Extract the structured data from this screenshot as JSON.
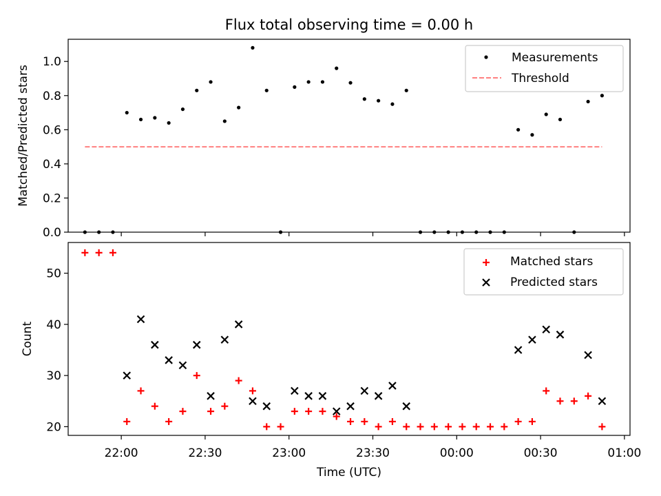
{
  "title": "Flux total observing time = 0.00 h",
  "chart_data": [
    {
      "type": "scatter",
      "panel": "top",
      "ylabel": "Matched/Predicted stars",
      "ylim": [
        0,
        1.13
      ],
      "yticks": [
        0.0,
        0.2,
        0.4,
        0.6,
        0.8,
        1.0
      ],
      "ytick_labels": [
        "0.0",
        "0.2",
        "0.4",
        "0.6",
        "0.8",
        "1.0"
      ],
      "legend_position": "top-right",
      "series": [
        {
          "name": "Measurements",
          "marker": "dot",
          "color": "#000000",
          "x": [
            "21:47",
            "21:52",
            "21:57",
            "22:02",
            "22:07",
            "22:12",
            "22:17",
            "22:22",
            "22:27",
            "22:32",
            "22:37",
            "22:42",
            "22:47",
            "22:52",
            "22:57",
            "23:02",
            "23:07",
            "23:12",
            "23:17",
            "23:22",
            "23:27",
            "23:32",
            "23:37",
            "23:42",
            "23:47",
            "23:52",
            "23:57",
            "00:02",
            "00:07",
            "00:12",
            "00:17",
            "00:22",
            "00:27",
            "00:32",
            "00:37",
            "00:42",
            "00:47",
            "00:52"
          ],
          "y": [
            0,
            0,
            0,
            0.7,
            0.66,
            0.67,
            0.64,
            0.72,
            0.83,
            0.88,
            0.65,
            0.73,
            1.08,
            0.83,
            0,
            0.85,
            0.88,
            0.88,
            0.96,
            0.875,
            0.78,
            0.77,
            0.75,
            0.83,
            0,
            0,
            0,
            0,
            0,
            0,
            0,
            0.6,
            0.57,
            0.69,
            0.66,
            0,
            0.765,
            0.8
          ]
        },
        {
          "name": "Threshold",
          "style": "dashed",
          "color": "#ff7f7f",
          "x": [
            "21:47",
            "00:52"
          ],
          "y": [
            0.5,
            0.5
          ]
        }
      ]
    },
    {
      "type": "scatter",
      "panel": "bottom",
      "xlabel": "Time (UTC)",
      "ylabel": "Count",
      "ylim": [
        18.3,
        56
      ],
      "yticks": [
        20,
        30,
        40,
        50
      ],
      "ytick_labels": [
        "20",
        "30",
        "40",
        "50"
      ],
      "xlim": [
        "21:41",
        "01:02"
      ],
      "xticks": [
        "22:00",
        "22:30",
        "23:00",
        "23:30",
        "00:00",
        "00:30",
        "01:00"
      ],
      "legend_position": "top-right",
      "series": [
        {
          "name": "Matched stars",
          "marker": "plus",
          "color": "#ff0000",
          "x": [
            "21:47",
            "21:52",
            "21:57",
            "22:02",
            "22:07",
            "22:12",
            "22:17",
            "22:22",
            "22:27",
            "22:32",
            "22:37",
            "22:42",
            "22:47",
            "22:52",
            "22:57",
            "23:02",
            "23:07",
            "23:12",
            "23:17",
            "23:22",
            "23:27",
            "23:32",
            "23:37",
            "23:42",
            "23:47",
            "23:52",
            "23:57",
            "00:02",
            "00:07",
            "00:12",
            "00:17",
            "00:22",
            "00:27",
            "00:32",
            "00:37",
            "00:42",
            "00:47",
            "00:52"
          ],
          "y": [
            54,
            54,
            54,
            21,
            27,
            24,
            21,
            23,
            30,
            23,
            24,
            29,
            27,
            20,
            20,
            23,
            23,
            23,
            22,
            21,
            21,
            20,
            21,
            20,
            20,
            20,
            20,
            20,
            20,
            20,
            20,
            21,
            21,
            27,
            25,
            25,
            26,
            20
          ]
        },
        {
          "name": "Predicted stars",
          "marker": "x",
          "color": "#000000",
          "x": [
            "22:02",
            "22:07",
            "22:12",
            "22:17",
            "22:22",
            "22:27",
            "22:32",
            "22:37",
            "22:42",
            "22:47",
            "22:52",
            "23:02",
            "23:07",
            "23:12",
            "23:17",
            "23:22",
            "23:27",
            "23:32",
            "23:37",
            "23:42",
            "00:22",
            "00:27",
            "00:32",
            "00:37",
            "00:47",
            "00:52"
          ],
          "y": [
            30,
            41,
            36,
            33,
            32,
            36,
            26,
            37,
            40,
            25,
            24,
            27,
            26,
            26,
            23,
            24,
            27,
            26,
            28,
            24,
            35,
            37,
            39,
            38,
            34,
            25
          ]
        }
      ]
    }
  ]
}
